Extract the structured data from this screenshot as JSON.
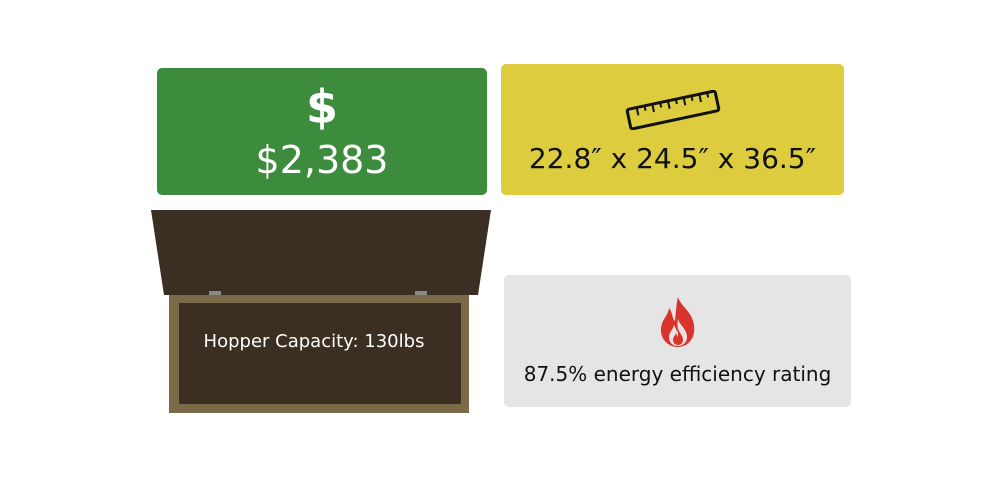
{
  "price": {
    "symbol": "$",
    "value": "$2,383"
  },
  "dimensions": {
    "icon": "ruler-icon",
    "value": "22.8″ x 24.5″ x 36.5″"
  },
  "hopper": {
    "label": "Hopper Capacity: 130lbs"
  },
  "efficiency": {
    "icon": "flame-icon",
    "value": "87.5% energy efficiency rating"
  },
  "colors": {
    "price_bg": "#3d8b3d",
    "dimensions_bg": "#dccc3e",
    "efficiency_bg": "#e5e5e5",
    "hopper_lid": "#3a2f22",
    "hopper_frame": "#7a6a48",
    "flame": "#d9342b"
  }
}
